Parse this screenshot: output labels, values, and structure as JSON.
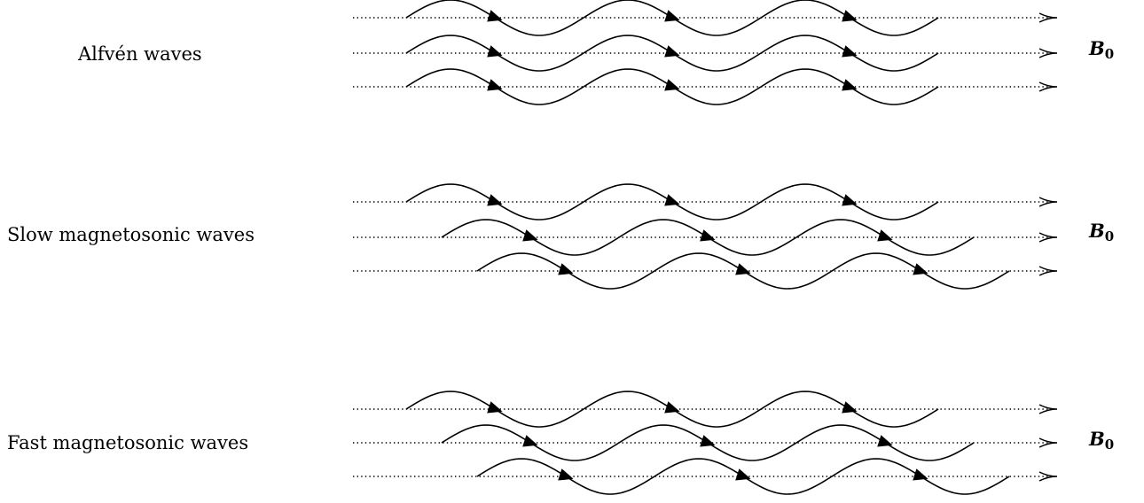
{
  "panels": [
    {
      "label": "Alfvén waves",
      "field_symbol": "B",
      "field_subscript": "0"
    },
    {
      "label": "Slow magnetosonic waves",
      "field_symbol": "B",
      "field_subscript": "0"
    },
    {
      "label": "Fast magnetosonic waves",
      "field_symbol": "B",
      "field_subscript": "0"
    }
  ]
}
